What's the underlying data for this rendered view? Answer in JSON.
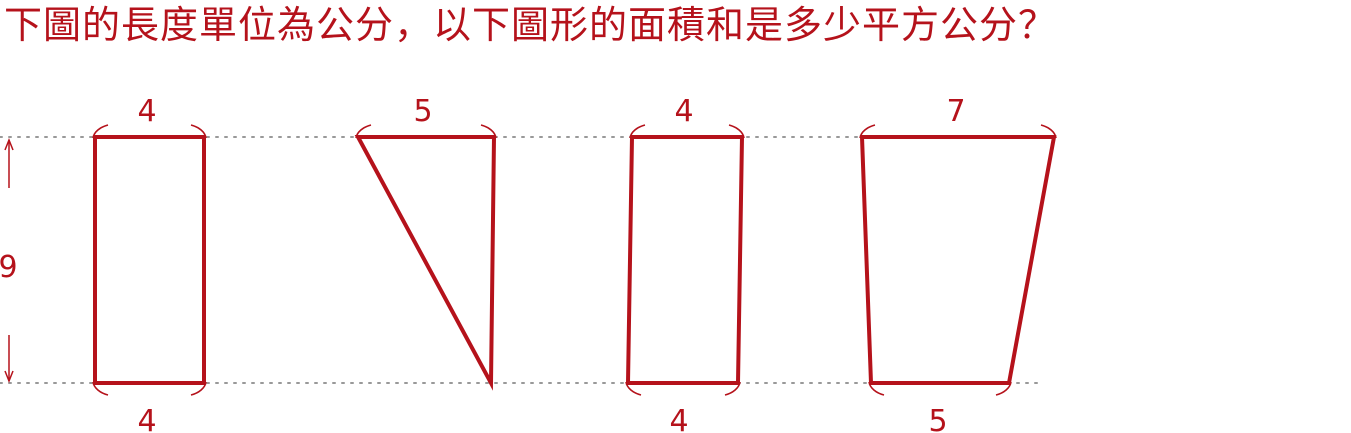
{
  "question": "下圖的長度單位為公分，以下圖形的面積和是多少平方公分？",
  "colors": {
    "accent": "#b5121b",
    "guide": "#999999"
  },
  "height_label": "9",
  "shapes": [
    {
      "kind": "rectangle",
      "top_label": "4",
      "bottom_label": "4"
    },
    {
      "kind": "triangle",
      "top_label": "5"
    },
    {
      "kind": "parallelogram",
      "top_label": "4",
      "bottom_label": "4"
    },
    {
      "kind": "trapezoid",
      "top_label": "7",
      "bottom_label": "5"
    }
  ]
}
